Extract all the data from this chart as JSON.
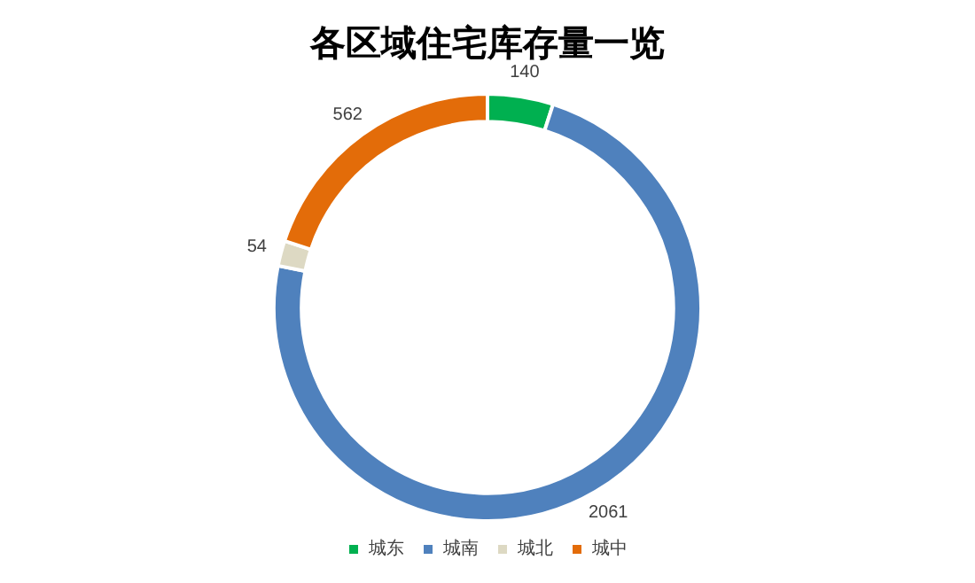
{
  "chart_data": {
    "type": "donut",
    "title": "各区域住宅库存量一览",
    "categories": [
      "城东",
      "城南",
      "城北",
      "城中"
    ],
    "values": [
      140,
      2061,
      54,
      562
    ],
    "colors": [
      "#00b050",
      "#4f81bd",
      "#ddd9c3",
      "#e36c09"
    ],
    "data_labels": true,
    "legend": "bottom"
  }
}
